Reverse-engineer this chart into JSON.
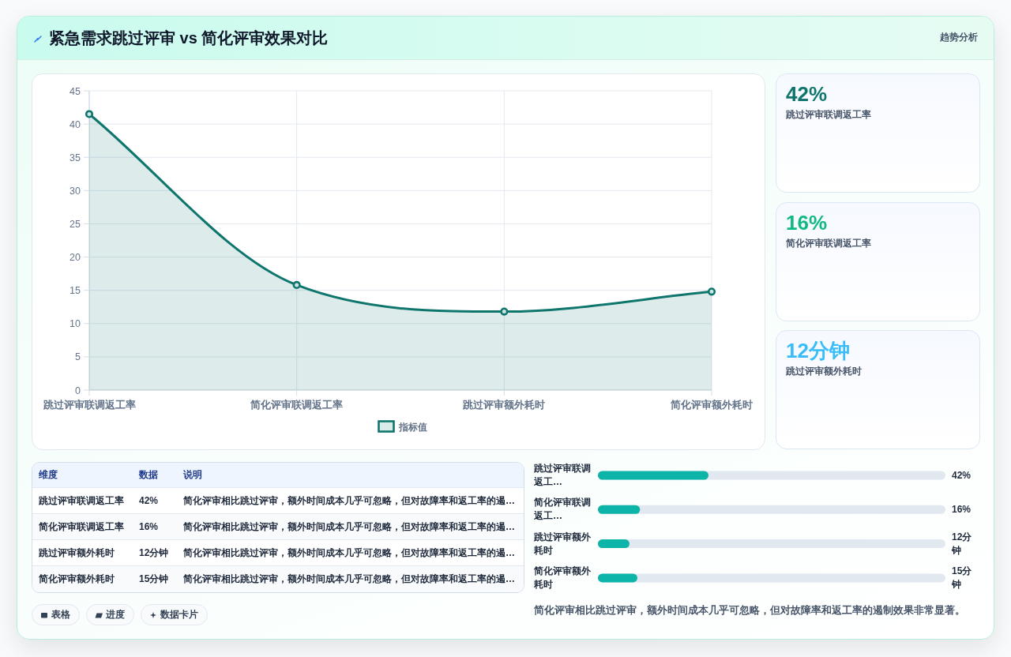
{
  "chart_data": [
    {
      "type": "area",
      "title": "紧急需求跳过评审 vs 简化评审效果对比",
      "annotations": [
        "趋势分析"
      ],
      "categories": [
        "跳过评审联调返工率",
        "简化评审联调返工率",
        "跳过评审额外耗时",
        "简化评审额外耗时"
      ],
      "series": [
        {
          "name": "指标值",
          "color": "#0f766e",
          "values": [
            41.5,
            15.8,
            11.8,
            14.8
          ]
        }
      ],
      "ylim": [
        0,
        45
      ],
      "yticks": [
        0,
        5,
        10,
        15,
        20,
        25,
        30,
        35,
        40,
        45
      ],
      "grid": true,
      "legend": "bottom",
      "marker": "circle",
      "line_style": "solid"
    },
    {
      "type": "other",
      "annotations": [
        "42%",
        "跳过评审联调返工率",
        "16%",
        "简化评审联调返工率",
        "12分钟",
        "跳过评审额外耗时"
      ],
      "colors": [
        "#0f766e",
        "#10b981",
        "#38bdf8"
      ]
    },
    {
      "type": "other",
      "annotations": [
        "维度",
        "数据",
        "说明",
        "跳过评审联调返工率",
        "42%",
        "简化评审相比跳过评审，额外时间成本几乎可忽略，但对故障率和返工率的遏…",
        "简化评审联调返工率",
        "16%",
        "简化评审相比跳过评审，额外时间成本几乎可忽略，但对故障率和返工率的遏…",
        "跳过评审额外耗时",
        "12分钟",
        "简化评审相比跳过评审，额外时间成本几乎可忽略，但对故障率和返工率的遏…",
        "简化评审额外耗时",
        "15分钟",
        "简化评审相比跳过评审，额外时间成本几乎可忽略，但对故障率和返工率的遏…"
      ]
    },
    {
      "type": "bar",
      "orientation": "horizontal",
      "categories": [
        "跳过评审联调返工…",
        "简化评审联调返工…",
        "跳过评审额外耗时",
        "简化评审额外耗时"
      ],
      "values": [
        42,
        16,
        12,
        15
      ],
      "value_labels": [
        "42%",
        "16%",
        "12分钟",
        "15分钟"
      ],
      "color": "#0db5a9",
      "xlim": [
        0,
        132
      ],
      "tick_labels": "y",
      "annotations": [
        "简化评审相比跳过评审，额外时间成本几乎可忽略，但对故障率和返工率的遏制效果非常显著。"
      ]
    },
    {
      "type": "other",
      "annotations": [
        "表格",
        "进度",
        "数据卡片"
      ]
    }
  ]
}
